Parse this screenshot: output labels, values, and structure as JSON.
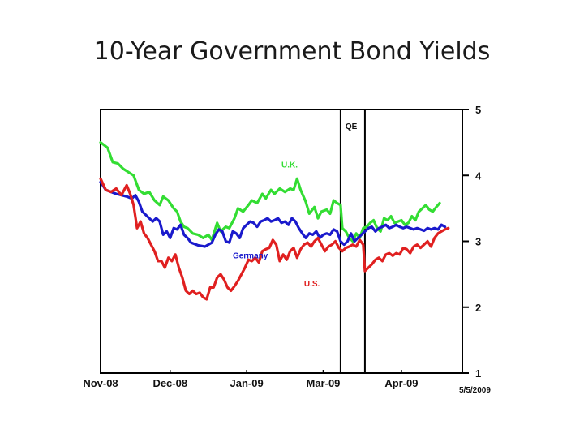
{
  "chart_data": {
    "type": "line",
    "title": "10-Year Government Bond Yields",
    "date_note": "5/5/2009",
    "x_categories": [
      "Nov-08",
      "Dec-08",
      "Jan-09",
      "Mar-09",
      "Apr-09"
    ],
    "x_tick_labels": [
      "Nov-08",
      "Dec-08",
      "Jan-09",
      "Mar-09",
      "Apr-09"
    ],
    "x_tick_positions": [
      0,
      40,
      84,
      128,
      173
    ],
    "xlim": [
      0,
      208
    ],
    "ylim": [
      1,
      5
    ],
    "y_ticks": [
      1,
      2,
      3,
      4,
      5
    ],
    "y_axis_side": "right",
    "grid": false,
    "annotation": {
      "text": "QE",
      "x_start": 138,
      "x_end": 152
    },
    "series": [
      {
        "name": "U.K.",
        "color": "#33dd33",
        "label_x": 104,
        "label_y": 4.12,
        "points": [
          [
            0,
            4.5
          ],
          [
            4,
            4.42
          ],
          [
            7,
            4.2
          ],
          [
            10,
            4.18
          ],
          [
            13,
            4.1
          ],
          [
            16,
            4.05
          ],
          [
            19,
            4.0
          ],
          [
            22,
            3.78
          ],
          [
            25,
            3.72
          ],
          [
            28,
            3.75
          ],
          [
            31,
            3.62
          ],
          [
            34,
            3.55
          ],
          [
            36,
            3.68
          ],
          [
            39,
            3.62
          ],
          [
            42,
            3.5
          ],
          [
            44,
            3.45
          ],
          [
            46,
            3.3
          ],
          [
            48,
            3.22
          ],
          [
            50,
            3.2
          ],
          [
            53,
            3.12
          ],
          [
            56,
            3.1
          ],
          [
            59,
            3.05
          ],
          [
            62,
            3.1
          ],
          [
            64,
            3.02
          ],
          [
            67,
            3.28
          ],
          [
            69,
            3.15
          ],
          [
            72,
            3.22
          ],
          [
            74,
            3.2
          ],
          [
            77,
            3.35
          ],
          [
            79,
            3.5
          ],
          [
            82,
            3.45
          ],
          [
            85,
            3.55
          ],
          [
            87,
            3.62
          ],
          [
            90,
            3.58
          ],
          [
            93,
            3.72
          ],
          [
            95,
            3.65
          ],
          [
            98,
            3.78
          ],
          [
            100,
            3.72
          ],
          [
            103,
            3.8
          ],
          [
            106,
            3.75
          ],
          [
            109,
            3.8
          ],
          [
            111,
            3.78
          ],
          [
            113,
            3.95
          ],
          [
            115,
            3.78
          ],
          [
            118,
            3.6
          ],
          [
            120,
            3.42
          ],
          [
            123,
            3.52
          ],
          [
            125,
            3.35
          ],
          [
            127,
            3.45
          ],
          [
            130,
            3.48
          ],
          [
            132,
            3.42
          ],
          [
            134,
            3.62
          ],
          [
            136,
            3.58
          ],
          [
            138,
            3.55
          ],
          [
            139,
            3.2
          ],
          [
            141,
            3.15
          ],
          [
            143,
            3.05
          ],
          [
            145,
            3.0
          ],
          [
            147,
            3.12
          ],
          [
            149,
            3.05
          ],
          [
            151,
            3.2
          ],
          [
            153,
            3.22
          ],
          [
            155,
            3.28
          ],
          [
            157,
            3.32
          ],
          [
            159,
            3.2
          ],
          [
            161,
            3.15
          ],
          [
            163,
            3.35
          ],
          [
            165,
            3.32
          ],
          [
            167,
            3.38
          ],
          [
            169,
            3.28
          ],
          [
            171,
            3.3
          ],
          [
            173,
            3.32
          ],
          [
            175,
            3.25
          ],
          [
            177,
            3.28
          ],
          [
            179,
            3.38
          ],
          [
            181,
            3.32
          ],
          [
            183,
            3.45
          ],
          [
            185,
            3.5
          ],
          [
            187,
            3.55
          ],
          [
            189,
            3.48
          ],
          [
            191,
            3.45
          ],
          [
            193,
            3.52
          ],
          [
            195,
            3.58
          ]
        ]
      },
      {
        "name": "Germany",
        "color": "#1a1acc",
        "label_x": 76,
        "label_y": 2.74,
        "points": [
          [
            0,
            3.9
          ],
          [
            3,
            3.78
          ],
          [
            6,
            3.75
          ],
          [
            9,
            3.72
          ],
          [
            12,
            3.7
          ],
          [
            15,
            3.68
          ],
          [
            18,
            3.65
          ],
          [
            20,
            3.7
          ],
          [
            22,
            3.6
          ],
          [
            24,
            3.45
          ],
          [
            26,
            3.4
          ],
          [
            28,
            3.35
          ],
          [
            30,
            3.3
          ],
          [
            32,
            3.35
          ],
          [
            34,
            3.3
          ],
          [
            36,
            3.1
          ],
          [
            38,
            3.15
          ],
          [
            40,
            3.05
          ],
          [
            42,
            3.2
          ],
          [
            44,
            3.18
          ],
          [
            46,
            3.25
          ],
          [
            48,
            3.1
          ],
          [
            50,
            3.05
          ],
          [
            52,
            2.98
          ],
          [
            54,
            2.96
          ],
          [
            56,
            2.94
          ],
          [
            58,
            2.93
          ],
          [
            60,
            2.92
          ],
          [
            62,
            2.95
          ],
          [
            64,
            2.98
          ],
          [
            66,
            3.1
          ],
          [
            68,
            3.18
          ],
          [
            70,
            3.15
          ],
          [
            72,
            3.0
          ],
          [
            74,
            2.98
          ],
          [
            76,
            3.15
          ],
          [
            78,
            3.12
          ],
          [
            80,
            3.05
          ],
          [
            82,
            3.2
          ],
          [
            84,
            3.25
          ],
          [
            86,
            3.3
          ],
          [
            88,
            3.28
          ],
          [
            90,
            3.22
          ],
          [
            92,
            3.3
          ],
          [
            94,
            3.32
          ],
          [
            96,
            3.35
          ],
          [
            98,
            3.3
          ],
          [
            100,
            3.32
          ],
          [
            102,
            3.35
          ],
          [
            104,
            3.28
          ],
          [
            106,
            3.3
          ],
          [
            108,
            3.25
          ],
          [
            110,
            3.35
          ],
          [
            112,
            3.3
          ],
          [
            114,
            3.2
          ],
          [
            116,
            3.12
          ],
          [
            118,
            3.05
          ],
          [
            120,
            3.12
          ],
          [
            122,
            3.1
          ],
          [
            124,
            3.15
          ],
          [
            126,
            3.05
          ],
          [
            128,
            3.1
          ],
          [
            130,
            3.12
          ],
          [
            132,
            3.1
          ],
          [
            134,
            3.18
          ],
          [
            136,
            3.15
          ],
          [
            138,
            3.0
          ],
          [
            140,
            2.95
          ],
          [
            142,
            3.0
          ],
          [
            144,
            3.12
          ],
          [
            146,
            3.0
          ],
          [
            148,
            3.05
          ],
          [
            150,
            3.1
          ],
          [
            152,
            3.15
          ],
          [
            154,
            3.2
          ],
          [
            156,
            3.22
          ],
          [
            158,
            3.15
          ],
          [
            160,
            3.2
          ],
          [
            162,
            3.22
          ],
          [
            164,
            3.25
          ],
          [
            166,
            3.2
          ],
          [
            168,
            3.22
          ],
          [
            170,
            3.25
          ],
          [
            172,
            3.22
          ],
          [
            174,
            3.2
          ],
          [
            176,
            3.22
          ],
          [
            178,
            3.2
          ],
          [
            180,
            3.18
          ],
          [
            182,
            3.2
          ],
          [
            184,
            3.18
          ],
          [
            186,
            3.16
          ],
          [
            188,
            3.2
          ],
          [
            190,
            3.18
          ],
          [
            192,
            3.2
          ],
          [
            194,
            3.18
          ],
          [
            196,
            3.25
          ],
          [
            198,
            3.22
          ]
        ]
      },
      {
        "name": "U.S.",
        "color": "#e02020",
        "label_x": 117,
        "label_y": 2.32,
        "points": [
          [
            0,
            3.95
          ],
          [
            3,
            3.78
          ],
          [
            6,
            3.75
          ],
          [
            9,
            3.8
          ],
          [
            12,
            3.7
          ],
          [
            15,
            3.85
          ],
          [
            17,
            3.72
          ],
          [
            19,
            3.55
          ],
          [
            21,
            3.2
          ],
          [
            23,
            3.3
          ],
          [
            25,
            3.12
          ],
          [
            27,
            3.05
          ],
          [
            29,
            2.95
          ],
          [
            31,
            2.85
          ],
          [
            33,
            2.7
          ],
          [
            35,
            2.7
          ],
          [
            37,
            2.6
          ],
          [
            39,
            2.75
          ],
          [
            41,
            2.7
          ],
          [
            43,
            2.8
          ],
          [
            45,
            2.6
          ],
          [
            47,
            2.45
          ],
          [
            49,
            2.25
          ],
          [
            51,
            2.2
          ],
          [
            53,
            2.25
          ],
          [
            55,
            2.2
          ],
          [
            57,
            2.22
          ],
          [
            59,
            2.15
          ],
          [
            61,
            2.12
          ],
          [
            63,
            2.3
          ],
          [
            65,
            2.3
          ],
          [
            67,
            2.45
          ],
          [
            69,
            2.5
          ],
          [
            71,
            2.42
          ],
          [
            73,
            2.3
          ],
          [
            75,
            2.25
          ],
          [
            77,
            2.32
          ],
          [
            79,
            2.4
          ],
          [
            81,
            2.5
          ],
          [
            83,
            2.6
          ],
          [
            85,
            2.72
          ],
          [
            87,
            2.7
          ],
          [
            89,
            2.75
          ],
          [
            91,
            2.68
          ],
          [
            93,
            2.85
          ],
          [
            95,
            2.88
          ],
          [
            97,
            2.9
          ],
          [
            99,
            3.02
          ],
          [
            101,
            2.95
          ],
          [
            103,
            2.7
          ],
          [
            105,
            2.8
          ],
          [
            107,
            2.72
          ],
          [
            109,
            2.85
          ],
          [
            111,
            2.9
          ],
          [
            113,
            2.75
          ],
          [
            115,
            2.88
          ],
          [
            117,
            2.95
          ],
          [
            119,
            2.98
          ],
          [
            121,
            2.92
          ],
          [
            123,
            3.0
          ],
          [
            125,
            3.05
          ],
          [
            127,
            2.95
          ],
          [
            129,
            2.85
          ],
          [
            131,
            2.92
          ],
          [
            133,
            2.95
          ],
          [
            135,
            3.0
          ],
          [
            137,
            2.9
          ],
          [
            139,
            2.85
          ],
          [
            141,
            2.9
          ],
          [
            143,
            2.92
          ],
          [
            145,
            2.95
          ],
          [
            147,
            2.92
          ],
          [
            149,
            3.02
          ],
          [
            151,
            2.95
          ],
          [
            152,
            2.55
          ],
          [
            154,
            2.6
          ],
          [
            156,
            2.65
          ],
          [
            158,
            2.72
          ],
          [
            160,
            2.75
          ],
          [
            162,
            2.7
          ],
          [
            164,
            2.8
          ],
          [
            166,
            2.82
          ],
          [
            168,
            2.78
          ],
          [
            170,
            2.82
          ],
          [
            172,
            2.8
          ],
          [
            174,
            2.9
          ],
          [
            176,
            2.88
          ],
          [
            178,
            2.82
          ],
          [
            180,
            2.92
          ],
          [
            182,
            2.95
          ],
          [
            184,
            2.9
          ],
          [
            186,
            2.95
          ],
          [
            188,
            3.0
          ],
          [
            190,
            2.92
          ],
          [
            192,
            3.05
          ],
          [
            194,
            3.12
          ],
          [
            196,
            3.15
          ],
          [
            198,
            3.18
          ],
          [
            200,
            3.2
          ]
        ]
      }
    ]
  }
}
